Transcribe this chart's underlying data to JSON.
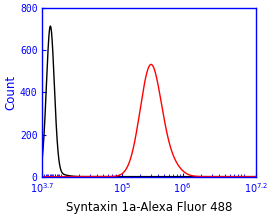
{
  "title": "Syntaxin 1a-Alexa Fluor 488",
  "ylabel": "Count",
  "xlim_log": [
    3.7,
    7.2
  ],
  "ylim": [
    0,
    800
  ],
  "yticks": [
    0,
    200,
    400,
    600,
    800
  ],
  "xtick_positions": [
    3.7,
    5.0,
    6.0,
    7.2
  ],
  "xtick_labels": [
    "$_{10}3.7$",
    "$_{10}5$",
    "$_{10}6$",
    "$_{10}7.2$"
  ],
  "black_peak_log": 3.83,
  "black_peak_height": 710,
  "black_sigma_log": 0.065,
  "red_peak_log": 5.48,
  "red_peak_height": 530,
  "red_sigma_log": 0.175,
  "spine_color": "#0000ff",
  "tick_color": "#0000ff",
  "label_color": "#0000ff",
  "black_color": "#000000",
  "red_color": "#ff0000",
  "background_color": "#ffffff",
  "xlabel_color": "#000000",
  "title_fontsize": 8.5,
  "axis_label_fontsize": 8.5,
  "tick_fontsize": 7.0,
  "linewidth": 1.0
}
